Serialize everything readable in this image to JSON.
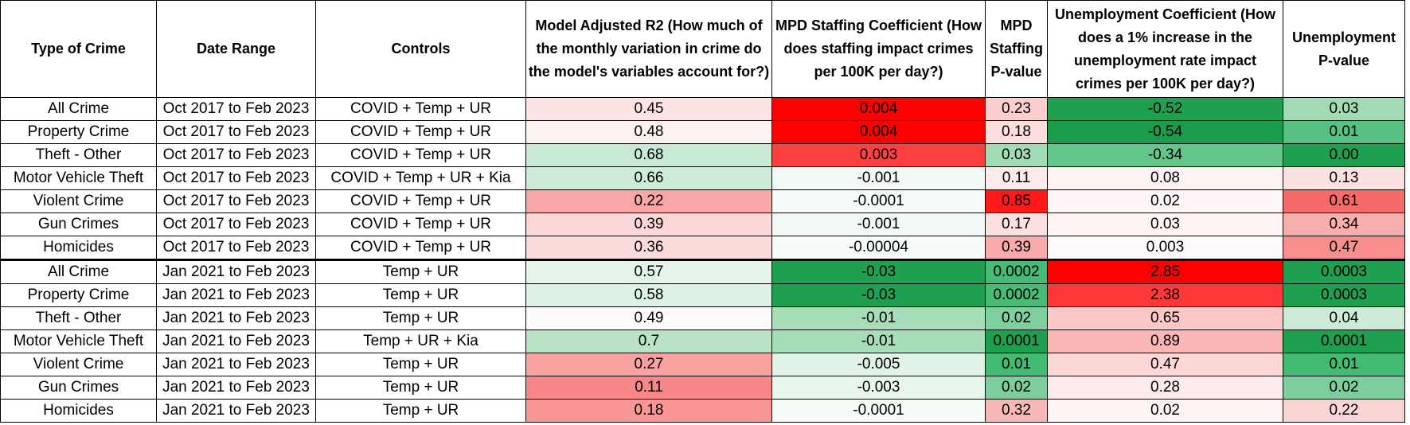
{
  "table": {
    "headers": [
      "Type of Crime",
      "Date Range",
      "Controls",
      "Model Adjusted R2 (How much of the monthly variation in crime do the model's variables account for?)",
      "MPD Staffing Coefficient (How does staffing impact crimes per 100K per day?)",
      "MPD Staffing P-value",
      "Unemployment Coefficient (How does a 1% increase in the unemployment rate impact crimes per 100K per day?)",
      "Unemployment P-value"
    ],
    "rows": [
      [
        "All Crime",
        "Oct 2017 to Feb 2023",
        "COVID + Temp + UR",
        "0.45",
        "0.004",
        "0.23",
        "-0.52",
        "0.03"
      ],
      [
        "Property Crime",
        "Oct 2017 to Feb 2023",
        "COVID + Temp + UR",
        "0.48",
        "0.004",
        "0.18",
        "-0.54",
        "0.01"
      ],
      [
        "Theft - Other",
        "Oct 2017 to Feb 2023",
        "COVID + Temp + UR",
        "0.68",
        "0.003",
        "0.03",
        "-0.34",
        "0.00"
      ],
      [
        "Motor Vehicle Theft",
        "Oct 2017 to Feb 2023",
        "COVID + Temp + UR + Kia",
        "0.66",
        "-0.001",
        "0.11",
        "0.08",
        "0.13"
      ],
      [
        "Violent Crime",
        "Oct 2017 to Feb 2023",
        "COVID + Temp + UR",
        "0.22",
        "-0.0001",
        "0.85",
        "0.02",
        "0.61"
      ],
      [
        "Gun Crimes",
        "Oct 2017 to Feb 2023",
        "COVID + Temp + UR",
        "0.39",
        "-0.001",
        "0.17",
        "0.03",
        "0.34"
      ],
      [
        "Homicides",
        "Oct 2017 to Feb 2023",
        "COVID + Temp + UR",
        "0.36",
        "-0.00004",
        "0.39",
        "0.003",
        "0.47"
      ],
      [
        "All Crime",
        "Jan 2021 to Feb 2023",
        "Temp + UR",
        "0.57",
        "-0.03",
        "0.0002",
        "2.85",
        "0.0003"
      ],
      [
        "Property Crime",
        "Jan 2021 to Feb 2023",
        "Temp + UR",
        "0.58",
        "-0.03",
        "0.0002",
        "2.38",
        "0.0003"
      ],
      [
        "Theft - Other",
        "Jan 2021 to Feb 2023",
        "Temp + UR",
        "0.49",
        "-0.01",
        "0.02",
        "0.65",
        "0.04"
      ],
      [
        "Motor Vehicle Theft",
        "Jan 2021 to Feb 2023",
        "Temp + UR + Kia",
        "0.7",
        "-0.01",
        "0.0001",
        "0.89",
        "0.0001"
      ],
      [
        "Violent Crime",
        "Jan 2021 to Feb 2023",
        "Temp + UR",
        "0.27",
        "-0.005",
        "0.01",
        "0.47",
        "0.01"
      ],
      [
        "Gun Crimes",
        "Jan 2021 to Feb 2023",
        "Temp + UR",
        "0.11",
        "-0.003",
        "0.02",
        "0.28",
        "0.02"
      ],
      [
        "Homicides",
        "Jan 2021 to Feb 2023",
        "Temp + UR",
        "0.18",
        "-0.0001",
        "0.32",
        "0.02",
        "0.22"
      ]
    ],
    "cell_colors": [
      [
        null,
        null,
        null,
        "#fde4e4",
        "#ff0000",
        "#fbcfcf",
        "#1ea050",
        "#a3dcb4"
      ],
      [
        null,
        null,
        null,
        "#fdf2f2",
        "#ff0000",
        "#fcdede",
        "#199c4b",
        "#56c180"
      ],
      [
        null,
        null,
        null,
        "#c8e9d3",
        "#fc3f3f",
        "#a2dcb4",
        "#62c58a",
        "#1ea050"
      ],
      [
        null,
        null,
        null,
        "#cdebd7",
        "#f1faf4",
        "#fdeaea",
        "#fdf3f3",
        "#fde0e0"
      ],
      [
        null,
        null,
        null,
        "#f9a6a6",
        "#f6fcf8",
        "#ff1a1a",
        "#fff7f7",
        "#f76a6a"
      ],
      [
        null,
        null,
        null,
        "#fbd6d6",
        "#f1faf4",
        "#fcdfdf",
        "#fff5f5",
        "#faafaf"
      ],
      [
        null,
        null,
        null,
        "#fbdada",
        "#f6fcf8",
        "#f9aaaa",
        "#fffbfb",
        "#f88e8e"
      ],
      [
        null,
        null,
        null,
        "#e4f4e9",
        "#1ea050",
        "#46bb74",
        "#ff0000",
        "#1ea050"
      ],
      [
        null,
        null,
        null,
        "#ddf1e4",
        "#1ea050",
        "#46bb74",
        "#ff3838",
        "#1ea050"
      ],
      [
        null,
        null,
        null,
        "#fdfbfb",
        "#a8ddb9",
        "#7fd09f",
        "#fcc7c7",
        "#cdebd7"
      ],
      [
        null,
        null,
        null,
        "#b9e3c6",
        "#a8ddb9",
        "#1ea050",
        "#fbb6b6",
        "#1ea050"
      ],
      [
        null,
        null,
        null,
        "#f9a2a2",
        "#e0f3e6",
        "#43ba71",
        "#fdd6d6",
        "#43ba71"
      ],
      [
        null,
        null,
        null,
        "#f88787",
        "#e8f6ed",
        "#7ccf9d",
        "#fdeaea",
        "#7ccf9d"
      ],
      [
        null,
        null,
        null,
        "#f99797",
        "#f6fcf8",
        "#f9b8b8",
        "#fff5f5",
        "#fbd5d5"
      ]
    ]
  }
}
